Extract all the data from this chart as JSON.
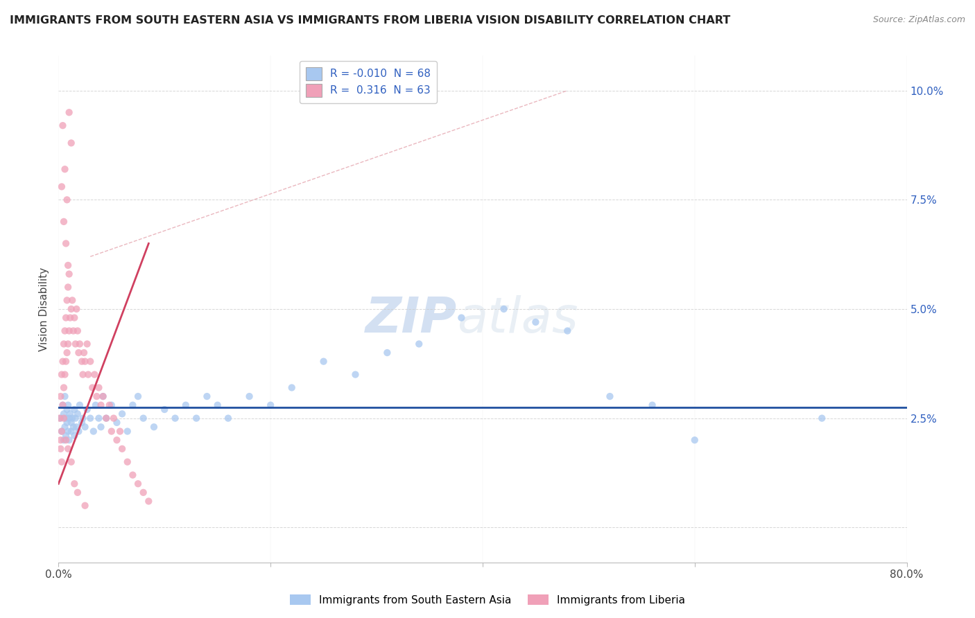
{
  "title": "IMMIGRANTS FROM SOUTH EASTERN ASIA VS IMMIGRANTS FROM LIBERIA VISION DISABILITY CORRELATION CHART",
  "source": "Source: ZipAtlas.com",
  "ylabel": "Vision Disability",
  "yticks": [
    0.0,
    0.025,
    0.05,
    0.075,
    0.1
  ],
  "ytick_labels": [
    "",
    "2.5%",
    "5.0%",
    "7.5%",
    "10.0%"
  ],
  "xlim": [
    0.0,
    0.8
  ],
  "ylim": [
    -0.008,
    0.108
  ],
  "legend_r_blue": "-0.010",
  "legend_n_blue": "68",
  "legend_r_pink": "0.316",
  "legend_n_pink": "63",
  "blue_color": "#a8c8f0",
  "pink_color": "#f0a0b8",
  "blue_line_color": "#2050a0",
  "pink_line_color": "#d04060",
  "diag_line_color": "#e8b0b8",
  "watermark_zip": "ZIP",
  "watermark_atlas": "atlas",
  "blue_scatter_x": [
    0.002,
    0.003,
    0.004,
    0.005,
    0.005,
    0.006,
    0.006,
    0.007,
    0.007,
    0.008,
    0.008,
    0.009,
    0.009,
    0.01,
    0.01,
    0.011,
    0.012,
    0.012,
    0.013,
    0.014,
    0.015,
    0.015,
    0.016,
    0.017,
    0.018,
    0.019,
    0.02,
    0.022,
    0.023,
    0.025,
    0.027,
    0.03,
    0.033,
    0.035,
    0.038,
    0.04,
    0.042,
    0.045,
    0.05,
    0.055,
    0.06,
    0.065,
    0.07,
    0.075,
    0.08,
    0.09,
    0.1,
    0.11,
    0.12,
    0.13,
    0.14,
    0.15,
    0.16,
    0.18,
    0.2,
    0.22,
    0.25,
    0.28,
    0.31,
    0.34,
    0.38,
    0.42,
    0.45,
    0.48,
    0.52,
    0.56,
    0.6,
    0.72
  ],
  "blue_scatter_y": [
    0.025,
    0.022,
    0.028,
    0.026,
    0.02,
    0.023,
    0.03,
    0.025,
    0.021,
    0.027,
    0.024,
    0.022,
    0.028,
    0.025,
    0.02,
    0.026,
    0.024,
    0.022,
    0.025,
    0.023,
    0.027,
    0.021,
    0.025,
    0.023,
    0.026,
    0.022,
    0.028,
    0.024,
    0.025,
    0.023,
    0.027,
    0.025,
    0.022,
    0.028,
    0.025,
    0.023,
    0.03,
    0.025,
    0.028,
    0.024,
    0.026,
    0.022,
    0.028,
    0.03,
    0.025,
    0.023,
    0.027,
    0.025,
    0.028,
    0.025,
    0.03,
    0.028,
    0.025,
    0.03,
    0.028,
    0.032,
    0.038,
    0.035,
    0.04,
    0.042,
    0.048,
    0.05,
    0.047,
    0.045,
    0.03,
    0.028,
    0.02,
    0.025
  ],
  "pink_scatter_x": [
    0.001,
    0.002,
    0.002,
    0.003,
    0.003,
    0.004,
    0.004,
    0.005,
    0.005,
    0.006,
    0.006,
    0.007,
    0.007,
    0.008,
    0.008,
    0.009,
    0.009,
    0.01,
    0.01,
    0.011,
    0.012,
    0.013,
    0.014,
    0.015,
    0.016,
    0.017,
    0.018,
    0.019,
    0.02,
    0.022,
    0.023,
    0.024,
    0.025,
    0.027,
    0.028,
    0.03,
    0.032,
    0.034,
    0.036,
    0.038,
    0.04,
    0.042,
    0.045,
    0.048,
    0.05,
    0.052,
    0.055,
    0.058,
    0.06,
    0.065,
    0.07,
    0.075,
    0.08,
    0.085,
    0.002,
    0.003,
    0.005,
    0.007,
    0.009,
    0.012,
    0.015,
    0.018,
    0.025
  ],
  "pink_scatter_y": [
    0.025,
    0.018,
    0.03,
    0.022,
    0.035,
    0.028,
    0.038,
    0.032,
    0.042,
    0.035,
    0.045,
    0.038,
    0.048,
    0.04,
    0.052,
    0.042,
    0.055,
    0.045,
    0.058,
    0.048,
    0.05,
    0.052,
    0.045,
    0.048,
    0.042,
    0.05,
    0.045,
    0.04,
    0.042,
    0.038,
    0.035,
    0.04,
    0.038,
    0.042,
    0.035,
    0.038,
    0.032,
    0.035,
    0.03,
    0.032,
    0.028,
    0.03,
    0.025,
    0.028,
    0.022,
    0.025,
    0.02,
    0.022,
    0.018,
    0.015,
    0.012,
    0.01,
    0.008,
    0.006,
    0.02,
    0.015,
    0.025,
    0.02,
    0.018,
    0.015,
    0.01,
    0.008,
    0.005
  ],
  "pink_outlier_x": [
    0.01,
    0.012,
    0.006,
    0.008,
    0.005,
    0.004,
    0.007,
    0.003,
    0.009
  ],
  "pink_outlier_y": [
    0.095,
    0.088,
    0.082,
    0.075,
    0.07,
    0.092,
    0.065,
    0.078,
    0.06
  ]
}
